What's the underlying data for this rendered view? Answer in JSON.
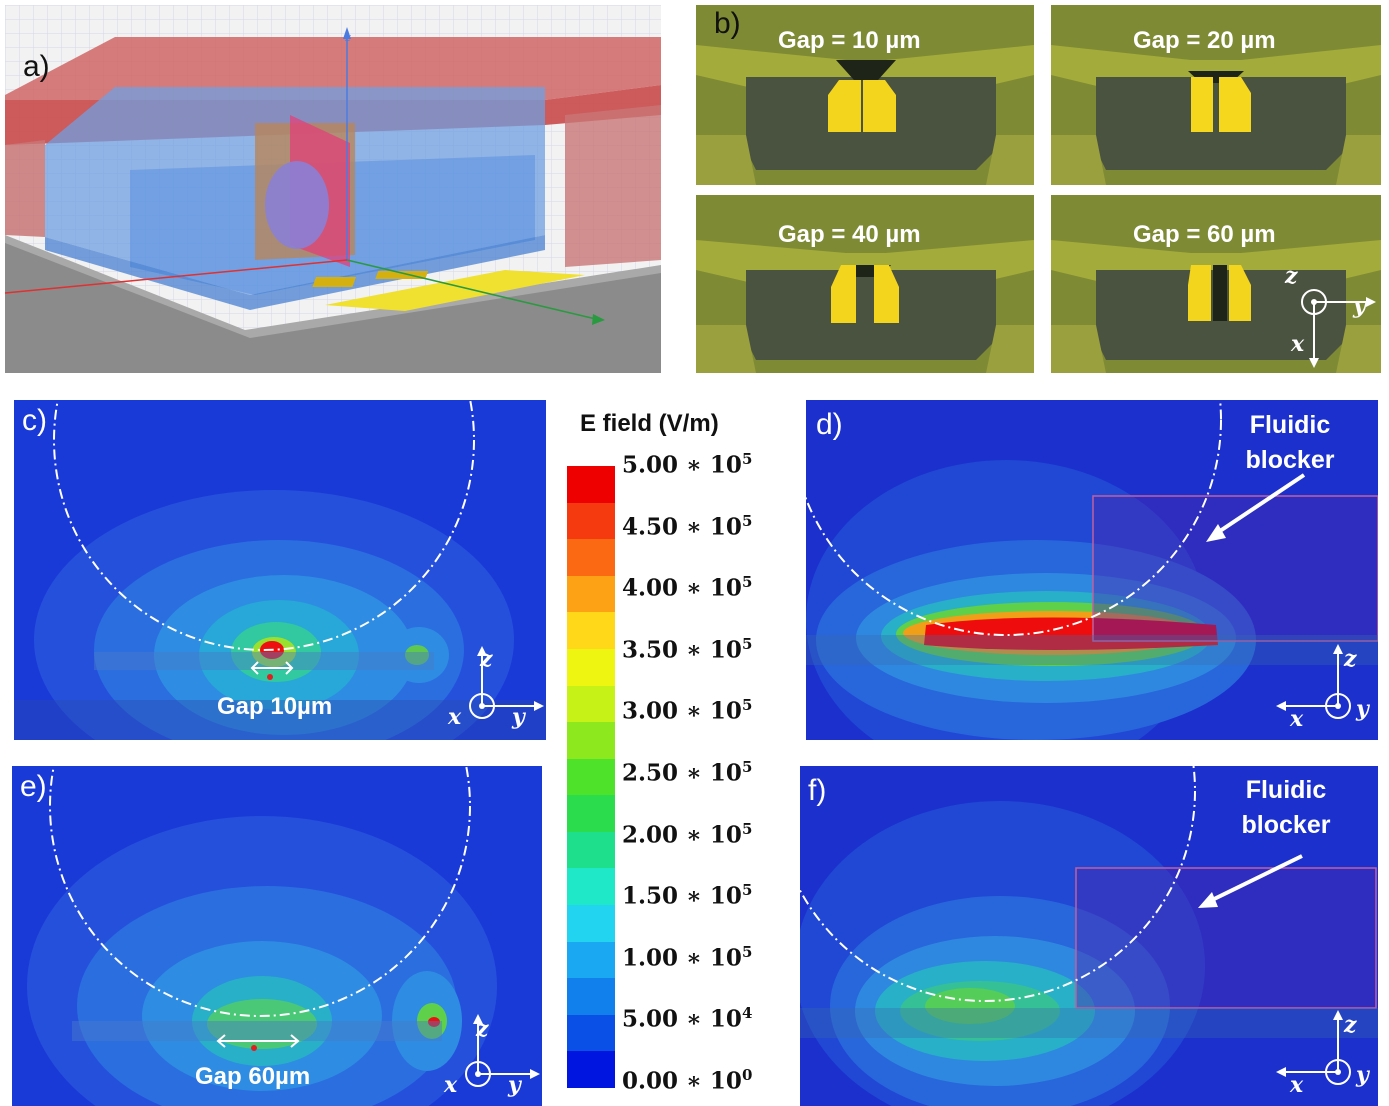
{
  "panels": {
    "a": "a)",
    "b": "b)",
    "c": "c)",
    "d": "d)",
    "e": "e)",
    "f": "f)"
  },
  "panel_b": {
    "gap1": "Gap = 10 µm",
    "gap2": "Gap = 20 µm",
    "gap3": "Gap = 40 µm",
    "gap4": "Gap = 60 µm"
  },
  "panel_c": {
    "gap": "Gap 10µm"
  },
  "panel_e": {
    "gap": "Gap 60µm"
  },
  "fluidic_blocker": {
    "line1": "Fluidic",
    "line2": "blocker"
  },
  "axes": {
    "x": "x",
    "y": "y",
    "z": "z"
  },
  "colorbar": {
    "title": "E field (V/m)",
    "ticks": [
      {
        "mant": "5.00",
        "exp": "5"
      },
      {
        "mant": "4.50",
        "exp": "5"
      },
      {
        "mant": "4.00",
        "exp": "5"
      },
      {
        "mant": "3.50",
        "exp": "5"
      },
      {
        "mant": "3.00",
        "exp": "5"
      },
      {
        "mant": "2.50",
        "exp": "5"
      },
      {
        "mant": "2.00",
        "exp": "5"
      },
      {
        "mant": "1.50",
        "exp": "5"
      },
      {
        "mant": "1.00",
        "exp": "5"
      },
      {
        "mant": "5.00",
        "exp": "4"
      },
      {
        "mant": "0.00",
        "exp": "0"
      }
    ],
    "colors": [
      "#ee0000",
      "#f53a10",
      "#fb6a12",
      "#fda214",
      "#ffd81a",
      "#eef511",
      "#c6f218",
      "#8ee81e",
      "#4ee22a",
      "#2bdc4c",
      "#1ee08c",
      "#1ee8c8",
      "#22d4f0",
      "#1aa8f2",
      "#1280ec",
      "#0a50e6",
      "#0015e0"
    ]
  },
  "colors": {
    "field_bg": "#1b3fd8",
    "gold": "#f3d51e",
    "olive": "#7f8a35"
  }
}
